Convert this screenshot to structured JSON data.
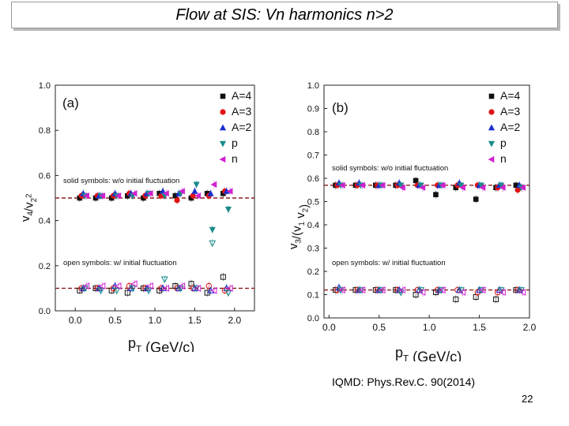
{
  "slide": {
    "title": "Flow at  SIS:   Vn harmonics n>2",
    "reference": "IQMD: Phys.Rev.C. 90(2014)",
    "page_number": "22"
  },
  "chart_data": [
    {
      "type": "scatter",
      "panel_label": "(a)",
      "ylabel": "v4/v2^2",
      "xlabel": "pT (GeV/c)",
      "xlim": [
        -0.25,
        2.25
      ],
      "ylim": [
        0.0,
        1.0
      ],
      "xticks": [
        "0.0",
        "0.5",
        "1.0",
        "1.5",
        "2.0"
      ],
      "yticks": [
        "0.0",
        "0.2",
        "0.4",
        "0.6",
        "0.8",
        "1.0"
      ],
      "annotations": [
        "solid symbols: w/o initial fluctuation",
        "open symbols: w/ initial fluctuation"
      ],
      "reference_lines": [
        0.5,
        0.1
      ],
      "legend_position": "top-right",
      "series": [
        {
          "name": "A=4",
          "marker": "square",
          "color": "#111111",
          "solid": {
            "x": [
              0.1,
              0.3,
              0.5,
              0.7,
              0.9,
              1.1,
              1.3,
              1.5,
              1.7,
              1.9
            ],
            "y": [
              0.5,
              0.5,
              0.5,
              0.51,
              0.5,
              0.52,
              0.51,
              0.5,
              0.52,
              0.52
            ]
          },
          "open": {
            "x": [
              0.1,
              0.3,
              0.5,
              0.7,
              0.9,
              1.1,
              1.3,
              1.5,
              1.7,
              1.9
            ],
            "y": [
              0.09,
              0.1,
              0.09,
              0.08,
              0.1,
              0.09,
              0.11,
              0.12,
              0.08,
              0.15
            ]
          }
        },
        {
          "name": "A=3",
          "marker": "circle",
          "color": "#e01414",
          "solid": {
            "x": [
              0.1,
              0.3,
              0.5,
              0.7,
              0.9,
              1.1,
              1.3,
              1.5,
              1.7,
              1.9
            ],
            "y": [
              0.51,
              0.51,
              0.51,
              0.52,
              0.51,
              0.51,
              0.49,
              0.51,
              0.51,
              0.53
            ]
          },
          "open": {
            "x": [
              0.1,
              0.3,
              0.5,
              0.7,
              0.9,
              1.1,
              1.3,
              1.5,
              1.7,
              1.9
            ],
            "y": [
              0.1,
              0.1,
              0.1,
              0.11,
              0.1,
              0.1,
              0.1,
              0.1,
              0.11,
              0.09
            ]
          }
        },
        {
          "name": "A=2",
          "marker": "triangle-up",
          "color": "#1a2fd0",
          "solid": {
            "x": [
              0.1,
              0.3,
              0.5,
              0.7,
              0.9,
              1.1,
              1.3,
              1.5,
              1.7,
              1.9
            ],
            "y": [
              0.52,
              0.51,
              0.52,
              0.52,
              0.52,
              0.53,
              0.52,
              0.53,
              0.52,
              0.53
            ]
          },
          "open": {
            "x": [
              0.1,
              0.3,
              0.5,
              0.7,
              0.9,
              1.1,
              1.3,
              1.5,
              1.7,
              1.9
            ],
            "y": [
              0.1,
              0.1,
              0.11,
              0.1,
              0.1,
              0.1,
              0.1,
              0.1,
              0.09,
              0.1
            ]
          }
        },
        {
          "name": "p",
          "marker": "triangle-down",
          "color": "#1a8a8a",
          "solid": {
            "x": [
              0.1,
              0.3,
              0.5,
              0.7,
              0.9,
              1.1,
              1.3,
              1.5,
              1.7,
              1.9
            ],
            "y": [
              0.51,
              0.51,
              0.51,
              0.51,
              0.52,
              0.51,
              0.52,
              0.56,
              0.36,
              0.45
            ]
          },
          "open": {
            "x": [
              0.1,
              0.3,
              0.5,
              0.7,
              0.9,
              1.1,
              1.3,
              1.5,
              1.7,
              1.9
            ],
            "y": [
              0.1,
              0.09,
              0.09,
              0.1,
              0.09,
              0.14,
              0.1,
              0.1,
              0.3,
              0.08
            ]
          }
        },
        {
          "name": "n",
          "marker": "triangle-left",
          "color": "#d020d0",
          "solid": {
            "x": [
              0.1,
              0.3,
              0.5,
              0.7,
              0.9,
              1.1,
              1.3,
              1.5,
              1.7,
              1.9
            ],
            "y": [
              0.51,
              0.51,
              0.51,
              0.52,
              0.52,
              0.52,
              0.53,
              0.51,
              0.56,
              0.53
            ]
          },
          "open": {
            "x": [
              0.1,
              0.3,
              0.5,
              0.7,
              0.9,
              1.1,
              1.3,
              1.5,
              1.7,
              1.9
            ],
            "y": [
              0.11,
              0.11,
              0.11,
              0.12,
              0.11,
              0.1,
              0.11,
              0.1,
              0.09,
              0.1
            ]
          }
        }
      ]
    },
    {
      "type": "scatter",
      "panel_label": "(b)",
      "ylabel": "v3/(v1 v2)",
      "xlabel": "pT (GeV/c)",
      "xlim": [
        -0.05,
        2.0
      ],
      "ylim": [
        0.0,
        1.0
      ],
      "xticks": [
        "0.0",
        "0.5",
        "1.0",
        "1.5",
        "2.0"
      ],
      "yticks": [
        "0.0",
        "0.1",
        "0.2",
        "0.3",
        "0.4",
        "0.5",
        "0.6",
        "0.7",
        "0.8",
        "0.9",
        "1.0"
      ],
      "annotations": [
        "solid symbols: w/o initial fluctuation",
        "open symbols: w/ initial fluctuation"
      ],
      "reference_lines": [
        0.57,
        0.12
      ],
      "legend_position": "top-right",
      "series": [
        {
          "name": "A=4",
          "marker": "square",
          "color": "#111111",
          "solid": {
            "x": [
              0.1,
              0.3,
              0.5,
              0.7,
              0.9,
              1.1,
              1.3,
              1.5,
              1.7,
              1.9
            ],
            "y": [
              0.57,
              0.57,
              0.57,
              0.57,
              0.59,
              0.53,
              0.56,
              0.51,
              0.56,
              0.57
            ]
          },
          "open": {
            "x": [
              0.1,
              0.3,
              0.5,
              0.7,
              0.9,
              1.1,
              1.3,
              1.5,
              1.7,
              1.9
            ],
            "y": [
              0.12,
              0.12,
              0.12,
              0.12,
              0.1,
              0.11,
              0.08,
              0.09,
              0.08,
              0.12
            ]
          }
        },
        {
          "name": "A=3",
          "marker": "circle",
          "color": "#e01414",
          "solid": {
            "x": [
              0.1,
              0.3,
              0.5,
              0.7,
              0.9,
              1.1,
              1.3,
              1.5,
              1.7,
              1.9
            ],
            "y": [
              0.57,
              0.57,
              0.57,
              0.57,
              0.57,
              0.57,
              0.57,
              0.57,
              0.56,
              0.55
            ]
          },
          "open": {
            "x": [
              0.1,
              0.3,
              0.5,
              0.7,
              0.9,
              1.1,
              1.3,
              1.5,
              1.7,
              1.9
            ],
            "y": [
              0.12,
              0.12,
              0.12,
              0.12,
              0.12,
              0.12,
              0.12,
              0.11,
              0.11,
              0.12
            ]
          }
        },
        {
          "name": "A=2",
          "marker": "triangle-up",
          "color": "#1a2fd0",
          "solid": {
            "x": [
              0.1,
              0.3,
              0.5,
              0.7,
              0.9,
              1.1,
              1.3,
              1.5,
              1.7,
              1.9
            ],
            "y": [
              0.58,
              0.58,
              0.57,
              0.58,
              0.57,
              0.57,
              0.58,
              0.57,
              0.57,
              0.57
            ]
          },
          "open": {
            "x": [
              0.1,
              0.3,
              0.5,
              0.7,
              0.9,
              1.1,
              1.3,
              1.5,
              1.7,
              1.9
            ],
            "y": [
              0.13,
              0.12,
              0.12,
              0.12,
              0.12,
              0.12,
              0.12,
              0.12,
              0.12,
              0.12
            ]
          }
        },
        {
          "name": "p",
          "marker": "triangle-down",
          "color": "#1a8a8a",
          "solid": {
            "x": [
              0.1,
              0.3,
              0.5,
              0.7,
              0.9,
              1.1,
              1.3,
              1.5,
              1.7,
              1.9
            ],
            "y": [
              0.57,
              0.57,
              0.57,
              0.57,
              0.57,
              0.57,
              0.57,
              0.57,
              0.57,
              0.56
            ]
          },
          "open": {
            "x": [
              0.1,
              0.3,
              0.5,
              0.7,
              0.9,
              1.1,
              1.3,
              1.5,
              1.7,
              1.9
            ],
            "y": [
              0.12,
              0.12,
              0.12,
              0.11,
              0.12,
              0.12,
              0.12,
              0.12,
              0.12,
              0.12
            ]
          }
        },
        {
          "name": "n",
          "marker": "triangle-left",
          "color": "#d020d0",
          "solid": {
            "x": [
              0.1,
              0.3,
              0.5,
              0.7,
              0.9,
              1.1,
              1.3,
              1.5,
              1.7,
              1.9
            ],
            "y": [
              0.57,
              0.57,
              0.57,
              0.56,
              0.56,
              0.57,
              0.56,
              0.56,
              0.56,
              0.56
            ]
          },
          "open": {
            "x": [
              0.1,
              0.3,
              0.5,
              0.7,
              0.9,
              1.1,
              1.3,
              1.5,
              1.7,
              1.9
            ],
            "y": [
              0.12,
              0.12,
              0.12,
              0.12,
              0.11,
              0.12,
              0.11,
              0.12,
              0.11,
              0.11
            ]
          }
        }
      ]
    }
  ]
}
